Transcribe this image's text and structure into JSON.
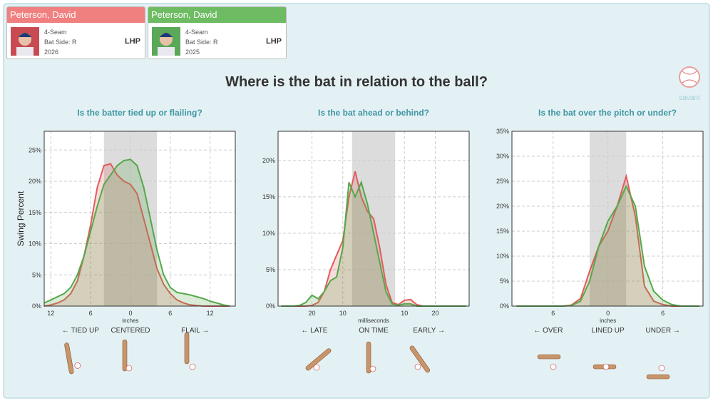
{
  "players": [
    {
      "name": "Peterson, David",
      "pitch": "4-Seam",
      "bat_side": "Bat Side: R",
      "season": "2026",
      "hand": "LHP",
      "color": "#f07f7f"
    },
    {
      "name": "Peterson, David",
      "pitch": "4-Seam",
      "bat_side": "Bat Side: R",
      "season": "2025",
      "hand": "LHP",
      "color": "#6dbb62"
    }
  ],
  "title": "Where is the bat in relation to the ball?",
  "logo": "savant",
  "chart_data": [
    {
      "type": "area",
      "title": "Is the batter tied up or flailing?",
      "y_label": "Swing Percent",
      "x_label": "inches",
      "xlim": [
        -13,
        15.8
      ],
      "xticks": [
        {
          "value": -12,
          "label": "12"
        },
        {
          "value": -6,
          "label": "6"
        },
        0,
        6,
        12
      ],
      "ylim": [
        0,
        28
      ],
      "yticks": [
        {
          "value": 0,
          "label": "0%"
        },
        {
          "value": 5,
          "label": "5%"
        },
        {
          "value": 10,
          "label": "10%"
        },
        {
          "value": 15,
          "label": "15%"
        },
        {
          "value": 20,
          "label": "20%"
        },
        {
          "value": 25,
          "label": "25%"
        }
      ],
      "grid": true,
      "band": [
        -4,
        4
      ],
      "x": [
        -13,
        -12,
        -11,
        -10,
        -9,
        -8,
        -7,
        -6,
        -5,
        -4,
        -3,
        -2,
        -1,
        0,
        1,
        2,
        3,
        4,
        5,
        6,
        7,
        8,
        9,
        10,
        11,
        12,
        13,
        14,
        15
      ],
      "series": [
        {
          "color": "#e05c5c",
          "values": [
            0,
            0.2,
            0.5,
            1,
            2,
            4,
            8,
            13,
            19,
            22.5,
            22.8,
            21,
            20,
            19.5,
            18,
            14,
            10,
            6,
            3.5,
            2,
            1,
            0.5,
            0.2,
            0.1,
            0,
            0,
            0,
            0,
            0
          ]
        },
        {
          "color": "#55a84a",
          "values": [
            0.5,
            1,
            1.5,
            2,
            3,
            5,
            8,
            12,
            16,
            19.5,
            21,
            22.5,
            23.3,
            23.5,
            22.5,
            19,
            14,
            9,
            5,
            3,
            2.2,
            2,
            1.8,
            1.5,
            1.2,
            0.8,
            0.5,
            0.2,
            0
          ]
        }
      ],
      "zone_labels": [
        "← TIED UP",
        "CENTERED",
        "FLAIL →"
      ]
    },
    {
      "type": "area",
      "title": "Is the bat ahead or behind?",
      "x_label": "milliseconds",
      "xlim": [
        -31,
        31
      ],
      "xticks": [
        {
          "value": -20,
          "label": "20"
        },
        {
          "value": -10,
          "label": "10"
        },
        10,
        20
      ],
      "ylim": [
        0,
        24
      ],
      "yticks": [
        {
          "value": 0,
          "label": "0%"
        },
        {
          "value": 5,
          "label": "5%"
        },
        {
          "value": 10,
          "label": "10%"
        },
        {
          "value": 15,
          "label": "15%"
        },
        {
          "value": 20,
          "label": "20%"
        }
      ],
      "grid": true,
      "band": [
        -7,
        7
      ],
      "x": [
        -30,
        -28,
        -26,
        -24,
        -22,
        -20,
        -18,
        -16,
        -14,
        -12,
        -10,
        -8,
        -6,
        -4,
        -2,
        0,
        2,
        4,
        6,
        8,
        10,
        12,
        14,
        16,
        18,
        20,
        22,
        24,
        26,
        28,
        30
      ],
      "series": [
        {
          "color": "#e05c5c",
          "values": [
            0,
            0,
            0,
            0,
            0,
            0.1,
            0.5,
            2,
            5,
            7,
            9,
            15,
            18.5,
            15,
            13,
            12,
            8,
            3,
            0.5,
            0.2,
            0.8,
            0.9,
            0.2,
            0,
            0,
            0,
            0,
            0,
            0,
            0,
            0
          ]
        },
        {
          "color": "#55a84a",
          "values": [
            0,
            0,
            0,
            0.1,
            0.5,
            1.5,
            1,
            2,
            3.5,
            4,
            8,
            17,
            15,
            17,
            14,
            10,
            6,
            2,
            0.3,
            0.1,
            0.3,
            0.3,
            0,
            0,
            0,
            0,
            0,
            0,
            0,
            0,
            0
          ]
        }
      ],
      "zone_labels": [
        "← LATE",
        "ON TIME",
        "EARLY →"
      ]
    },
    {
      "type": "area",
      "title": "Is the bat over the pitch or under?",
      "x_label": "inches",
      "xlim": [
        -10.5,
        10.4
      ],
      "xticks": [
        {
          "value": -6,
          "label": "6"
        },
        0,
        6
      ],
      "ylim": [
        0,
        35
      ],
      "yticks": [
        {
          "value": 0,
          "label": "0%"
        },
        {
          "value": 5,
          "label": "5%"
        },
        {
          "value": 10,
          "label": "10%"
        },
        {
          "value": 15,
          "label": "15%"
        },
        {
          "value": 20,
          "label": "20%"
        },
        {
          "value": 25,
          "label": "25%"
        },
        {
          "value": 30,
          "label": "30%"
        },
        {
          "value": 35,
          "label": "35%"
        }
      ],
      "grid": true,
      "band": [
        -2,
        2
      ],
      "x": [
        -10,
        -9,
        -8,
        -7,
        -6,
        -5,
        -4,
        -3,
        -2,
        -1,
        0,
        1,
        2,
        3,
        4,
        5,
        6,
        7,
        8,
        9,
        10
      ],
      "series": [
        {
          "color": "#e05c5c",
          "values": [
            0,
            0,
            0,
            0,
            0,
            0,
            0.2,
            1.5,
            7,
            12,
            15,
            20,
            26,
            18,
            4,
            1,
            0.3,
            0,
            0,
            0,
            0
          ]
        },
        {
          "color": "#55a84a",
          "values": [
            0,
            0,
            0,
            0,
            0,
            0,
            0.1,
            1,
            5,
            12,
            17,
            20,
            24,
            20,
            8,
            3,
            1.2,
            0.3,
            0,
            0,
            0
          ]
        }
      ],
      "zone_labels": [
        "← OVER",
        "LINED UP",
        "UNDER →"
      ]
    }
  ]
}
